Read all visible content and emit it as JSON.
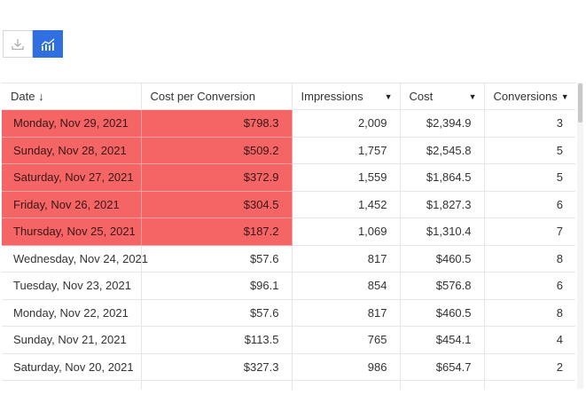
{
  "toolbar": {
    "download_icon": "download-icon",
    "chart_icon": "bar-chart-icon",
    "accent": "#2f6fe0"
  },
  "table": {
    "highlight_color": "#f56565",
    "columns": [
      {
        "label": "Date",
        "sort_indicator": "↓"
      },
      {
        "label": "Cost per Conversion",
        "sort_indicator": ""
      },
      {
        "label": "Impressions",
        "sort_indicator": "▼"
      },
      {
        "label": "Cost",
        "sort_indicator": "▼"
      },
      {
        "label": "Conversions",
        "sort_indicator": "▼"
      }
    ],
    "rows": [
      {
        "date": "Monday, Nov 29, 2021",
        "cpc": "$798.3",
        "impressions": "2,009",
        "cost": "$2,394.9",
        "conversions": "3",
        "highlight": true
      },
      {
        "date": "Sunday, Nov 28, 2021",
        "cpc": "$509.2",
        "impressions": "1,757",
        "cost": "$2,545.8",
        "conversions": "5",
        "highlight": true
      },
      {
        "date": "Saturday, Nov 27, 2021",
        "cpc": "$372.9",
        "impressions": "1,559",
        "cost": "$1,864.5",
        "conversions": "5",
        "highlight": true
      },
      {
        "date": "Friday, Nov 26, 2021",
        "cpc": "$304.5",
        "impressions": "1,452",
        "cost": "$1,827.3",
        "conversions": "6",
        "highlight": true
      },
      {
        "date": "Thursday, Nov 25, 2021",
        "cpc": "$187.2",
        "impressions": "1,069",
        "cost": "$1,310.4",
        "conversions": "7",
        "highlight": true
      },
      {
        "date": "Wednesday, Nov 24, 2021",
        "cpc": "$57.6",
        "impressions": "817",
        "cost": "$460.5",
        "conversions": "8",
        "highlight": false
      },
      {
        "date": "Tuesday, Nov 23, 2021",
        "cpc": "$96.1",
        "impressions": "854",
        "cost": "$576.8",
        "conversions": "6",
        "highlight": false
      },
      {
        "date": "Monday, Nov 22, 2021",
        "cpc": "$57.6",
        "impressions": "817",
        "cost": "$460.5",
        "conversions": "8",
        "highlight": false
      },
      {
        "date": "Sunday, Nov 21, 2021",
        "cpc": "$113.5",
        "impressions": "765",
        "cost": "$454.1",
        "conversions": "4",
        "highlight": false
      },
      {
        "date": "Saturday, Nov 20, 2021",
        "cpc": "$327.3",
        "impressions": "986",
        "cost": "$654.7",
        "conversions": "2",
        "highlight": false
      },
      {
        "date": "",
        "cpc": "",
        "impressions": "",
        "cost": "",
        "conversions": "",
        "highlight": false
      }
    ]
  }
}
